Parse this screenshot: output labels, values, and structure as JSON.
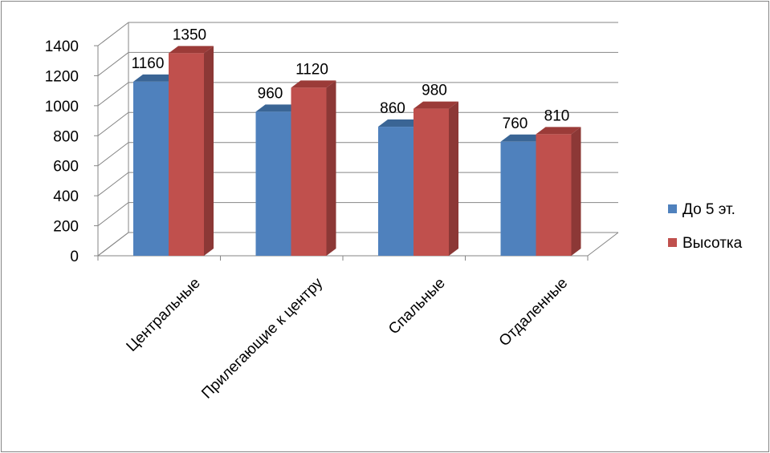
{
  "chart_data": {
    "type": "bar",
    "variant": "3d-clustered-column",
    "categories": [
      "Центральные",
      "Прилегающие к центру",
      "Спальные",
      "Отдаленные"
    ],
    "series": [
      {
        "name": "До 5 эт.",
        "color": "#4F81BD",
        "side_color": "#385D8A",
        "top_color": "#3A6595",
        "values": [
          1160,
          960,
          860,
          760
        ]
      },
      {
        "name": "Высотка",
        "color": "#C0504D",
        "side_color": "#8C3836",
        "top_color": "#9B3B38",
        "values": [
          1350,
          1120,
          980,
          810
        ]
      }
    ],
    "yticks": [
      0,
      200,
      400,
      600,
      800,
      1000,
      1200,
      1400
    ],
    "ylim": [
      0,
      1400
    ],
    "grid": true,
    "legend_position": "right",
    "data_labels": true,
    "title": "",
    "xlabel": "",
    "ylabel": ""
  }
}
